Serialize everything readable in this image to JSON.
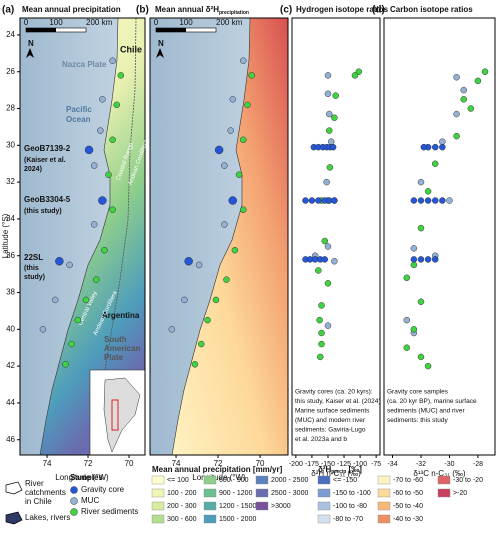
{
  "panels": {
    "a": {
      "label": "(a)",
      "title": "Mean annual precipitation"
    },
    "b": {
      "label": "(b)",
      "title": "Mean annual δ²H",
      "title_sub": "precipitation"
    },
    "c": {
      "label": "(c)",
      "title": "Hydrogen isotope ratios"
    },
    "d": {
      "label": "(d)",
      "title": "Carbon isotope ratios"
    }
  },
  "map": {
    "ylabel": "Latitude (°S)",
    "xlabel": "Longitude (°W)",
    "ylim": [
      23.08,
      46.83
    ],
    "yticks": [
      24,
      26,
      28,
      30,
      32,
      34,
      36,
      38,
      40,
      42,
      44,
      46
    ],
    "xlim_a": [
      75.32,
      69.22
    ],
    "xlim_b": [
      75.24,
      68.67
    ],
    "xticks": [
      74,
      72,
      70
    ],
    "scale_labels": [
      "0",
      "100",
      "200 km"
    ],
    "north": "N",
    "labels_a": [
      "Chile",
      "Nazca Plate",
      "Pacific",
      "Ocean",
      "GeoB7139-2",
      "(Kaiser et al.",
      "2024)",
      "GeoB3304-5",
      "(this study)",
      "22SL",
      "(this",
      "study)",
      "Argentina",
      "South",
      "American",
      "Plate",
      "Coastal Range",
      "Andean Cordillera",
      "Central Valley",
      "Andean Cordillera"
    ],
    "samples": {
      "gravity_core": {
        "lon": [
          71.95,
          71.3,
          73.4
        ],
        "lat": [
          30.25,
          33.0,
          36.3
        ]
      },
      "muc": {
        "lon": [
          70.8,
          71.3,
          71.4,
          71.7,
          71.7,
          72.9,
          73.6,
          74.2
        ],
        "lat": [
          25.4,
          27.5,
          29.2,
          31.1,
          34.3,
          36.5,
          38.4,
          40.0
        ]
      },
      "river": {
        "lon": [
          70.4,
          70.6,
          70.8,
          71.0,
          70.8,
          71.2,
          71.6,
          72.1,
          72.5,
          72.8,
          73.1
        ],
        "lat": [
          26.2,
          27.8,
          29.7,
          31.6,
          33.5,
          35.7,
          37.3,
          38.4,
          39.5,
          40.8,
          41.9
        ]
      }
    }
  },
  "chart_data": [
    {
      "type": "scatter",
      "xlabel": "δ²H n-C₃₁ (‰)",
      "xlim": [
        -206,
        -69
      ],
      "xticks": [
        -200,
        -175,
        -150,
        -125,
        -100,
        -75
      ],
      "ylim": [
        23.08,
        46.83
      ],
      "notes": [
        "Gravity cores (ca. 20 kyrs):",
        "this study, Kaiser et al. (2024)",
        "Marine surface sediments",
        "(MUC) and modern river",
        "sediments: Gaviria-Lugo",
        "et al. 2023a and b"
      ],
      "series": [
        {
          "name": "Gravity core",
          "color": "#2356d8",
          "x": [
            -172,
            -165,
            -158,
            -152,
            -147,
            -142,
            -185,
            -175,
            -165,
            -155,
            -148,
            -140,
            -185,
            -178,
            -170,
            -162,
            -155
          ],
          "values": [
            30.1,
            30.1,
            30.1,
            30.1,
            30.1,
            30.1,
            33,
            33,
            33,
            33,
            33,
            33,
            36.2,
            36.2,
            36.2,
            36.2,
            36.2
          ]
        },
        {
          "name": "MUC",
          "color": "#92b1d4",
          "x": [
            -150,
            -150,
            -148,
            -145,
            -152,
            -150,
            -150,
            -170,
            -150,
            -140
          ],
          "values": [
            26.2,
            27.2,
            28.3,
            29.8,
            32,
            33,
            35.5,
            36,
            39.8,
            36.3
          ]
        },
        {
          "name": "River sediments",
          "color": "#3fd43f",
          "x": [
            -102,
            -108,
            -138,
            -140,
            -148,
            -147,
            -160,
            -155,
            -165,
            -150,
            -160,
            -163,
            -160,
            -160,
            -162,
            -140
          ],
          "values": [
            26,
            26.2,
            27.3,
            28.5,
            29.2,
            31.2,
            33,
            35.2,
            36.8,
            37.5,
            38.7,
            39.5,
            40.2,
            40.8,
            41.5,
            33
          ]
        }
      ]
    },
    {
      "type": "scatter",
      "xlabel": "δ¹³C n-C₃₁ (‰)",
      "xlim": [
        -34.6,
        -26.8
      ],
      "xticks": [
        -34,
        -32,
        -30,
        -28
      ],
      "ylim": [
        23.08,
        46.83
      ],
      "notes": [
        "Gravity core samples",
        "(ca. 20 kyr BP), marine surface",
        "sediments (MUC) and river",
        "sediments: this study"
      ],
      "series": [
        {
          "name": "Gravity core",
          "color": "#2356d8",
          "x": [
            -30.5,
            -31,
            -31.5,
            -31.8,
            -32.5,
            -32,
            -31.5,
            -31,
            -30.5,
            -32.5,
            -32,
            -31.5,
            -31
          ],
          "values": [
            30.1,
            30.1,
            30.1,
            30.1,
            33,
            33,
            33,
            33,
            33,
            36.2,
            36.2,
            36.2,
            36.2
          ]
        },
        {
          "name": "MUC",
          "color": "#92b1d4",
          "x": [
            -29.5,
            -29,
            -29.5,
            -30.5,
            -32,
            -30,
            -32.5,
            -31,
            -33,
            -32.5
          ],
          "values": [
            26.3,
            27,
            28.3,
            29.8,
            32,
            33,
            35.6,
            36,
            39.5,
            40.2
          ]
        },
        {
          "name": "River sediments",
          "color": "#3fd43f",
          "x": [
            -27.5,
            -28,
            -29,
            -28.5,
            -29.5,
            -31,
            -31.5,
            -32,
            -32.5,
            -33,
            -32,
            -32.5,
            -33,
            -32,
            -31.5
          ],
          "values": [
            26,
            26.5,
            27.5,
            28,
            29.5,
            31,
            32.5,
            34.5,
            36.5,
            37.2,
            38.5,
            40,
            41,
            41.5,
            42
          ]
        }
      ]
    }
  ],
  "legend": {
    "catchments": [
      "River",
      "catchments",
      "in Chile"
    ],
    "lakes": "Lakes, rivers",
    "samples_title": "Samples",
    "samples": [
      "Gravity core",
      "MUC",
      "River sediments"
    ],
    "precip_title": "Mean annual precipitation [mm/yr]",
    "precip": [
      {
        "label": "<= 100",
        "color": "#ffffcc"
      },
      {
        "label": "100 - 200",
        "color": "#eef5b5"
      },
      {
        "label": "200 - 300",
        "color": "#d6eca0"
      },
      {
        "label": "300 - 600",
        "color": "#b3de8f"
      },
      {
        "label": "600 - 900",
        "color": "#8ccf8a"
      },
      {
        "label": "900 - 1200",
        "color": "#6cbf90"
      },
      {
        "label": "1200 - 1500",
        "color": "#58aea6"
      },
      {
        "label": "1500 - 2000",
        "color": "#4d9cbc"
      },
      {
        "label": "2000 - 2500",
        "color": "#5a84c0"
      },
      {
        "label": "2500 - 3000",
        "color": "#6a6cb0"
      },
      {
        "label": ">3000",
        "color": "#7a529c"
      }
    ],
    "d2h_title": "δ²H",
    "d2h_title_sub": "precip",
    "d2h_title_unit": " [‰]",
    "d2h": [
      {
        "label": "<= -150",
        "color": "#4a6fc0"
      },
      {
        "label": "-150 to -100",
        "color": "#7b9bd2"
      },
      {
        "label": "-100 to -80",
        "color": "#a9c2e2"
      },
      {
        "label": "-80 to -70",
        "color": "#d2e2ef"
      },
      {
        "label": "-70 to -60",
        "color": "#fff2c2"
      },
      {
        "label": "-60 to -50",
        "color": "#fdd99a"
      },
      {
        "label": "-50 to -40",
        "color": "#f8b878"
      },
      {
        "label": "-40 to -30",
        "color": "#ef9060"
      },
      {
        "label": "-30 to -20",
        "color": "#e06262"
      },
      {
        "label": ">-20",
        "color": "#c93f5f"
      }
    ]
  }
}
